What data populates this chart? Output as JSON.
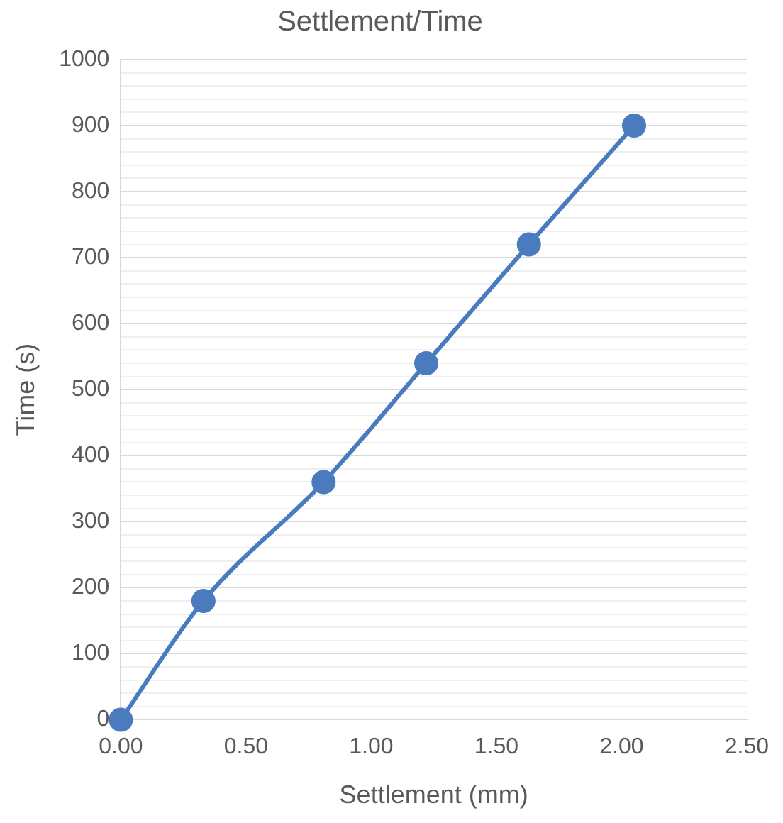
{
  "chart_data": {
    "type": "line",
    "title": "Settlement/Time",
    "xlabel": "Settlement (mm)",
    "ylabel": "Time (s)",
    "x": [
      0,
      0.33,
      0.81,
      1.22,
      1.63,
      2.05
    ],
    "series": [
      {
        "color": "#4a7bbf",
        "values": [
          0,
          180,
          360,
          540,
          720,
          900
        ]
      }
    ],
    "xlim": [
      0,
      2.5
    ],
    "xticks": [
      {
        "value": 0,
        "label": "0.00"
      },
      {
        "value": 0.5,
        "label": "0.50"
      },
      {
        "value": 1,
        "label": "1.00"
      },
      {
        "value": 1.5,
        "label": "1.50"
      },
      {
        "value": 2,
        "label": "2.00"
      },
      {
        "value": 2.5,
        "label": "2.50"
      }
    ],
    "ylim": [
      0,
      1000
    ],
    "yticks": [
      0,
      {
        "value": 20,
        "label": null
      },
      {
        "value": 40,
        "label": null
      },
      {
        "value": 60,
        "label": null
      },
      {
        "value": 80,
        "label": null
      },
      100,
      {
        "value": 120,
        "label": null
      },
      {
        "value": 140,
        "label": null
      },
      {
        "value": 160,
        "label": null
      },
      {
        "value": 180,
        "label": null
      },
      200,
      {
        "value": 220,
        "label": null
      },
      {
        "value": 240,
        "label": null
      },
      {
        "value": 260,
        "label": null
      },
      {
        "value": 280,
        "label": null
      },
      300,
      {
        "value": 320,
        "label": null
      },
      {
        "value": 340,
        "label": null
      },
      {
        "value": 360,
        "label": null
      },
      {
        "value": 380,
        "label": null
      },
      400,
      {
        "value": 420,
        "label": null
      },
      {
        "value": 440,
        "label": null
      },
      {
        "value": 460,
        "label": null
      },
      {
        "value": 480,
        "label": null
      },
      500,
      {
        "value": 520,
        "label": null
      },
      {
        "value": 540,
        "label": null
      },
      {
        "value": 560,
        "label": null
      },
      {
        "value": 580,
        "label": null
      },
      600,
      {
        "value": 620,
        "label": null
      },
      {
        "value": 640,
        "label": null
      },
      {
        "value": 660,
        "label": null
      },
      {
        "value": 680,
        "label": null
      },
      700,
      {
        "value": 720,
        "label": null
      },
      {
        "value": 740,
        "label": null
      },
      {
        "value": 760,
        "label": null
      },
      {
        "value": 780,
        "label": null
      },
      800,
      {
        "value": 820,
        "label": null
      },
      {
        "value": 840,
        "label": null
      },
      {
        "value": 860,
        "label": null
      },
      {
        "value": 880,
        "label": null
      },
      900,
      {
        "value": 920,
        "label": null
      },
      {
        "value": 940,
        "label": null
      },
      {
        "value": 960,
        "label": null
      },
      {
        "value": 980,
        "label": null
      },
      1000
    ],
    "grid": "y",
    "legend": false,
    "marker": "circle",
    "line_style": "solid"
  }
}
